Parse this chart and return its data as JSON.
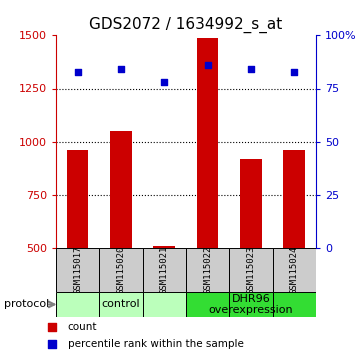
{
  "title": "GDS2072 / 1634992_s_at",
  "samples": [
    "GSM115017",
    "GSM115020",
    "GSM115021",
    "GSM115022",
    "GSM115023",
    "GSM115024"
  ],
  "counts": [
    960,
    1050,
    510,
    1490,
    920,
    960
  ],
  "percentile_ranks": [
    83,
    84,
    78,
    86,
    84,
    83
  ],
  "ylim_left": [
    500,
    1500
  ],
  "ylim_right": [
    0,
    100
  ],
  "yticks_left": [
    500,
    750,
    1000,
    1250,
    1500
  ],
  "yticks_right": [
    0,
    25,
    50,
    75,
    100
  ],
  "ytick_labels_right": [
    "0",
    "25",
    "50",
    "75",
    "100%"
  ],
  "bar_color": "#cc0000",
  "dot_color": "#0000cc",
  "bar_bottom": 500,
  "groups": [
    {
      "label": "control",
      "color": "#bbffbb"
    },
    {
      "label": "DHR96\noverexpression",
      "color": "#33dd33"
    }
  ],
  "protocol_label": "protocol",
  "legend_count_label": "count",
  "legend_percentile_label": "percentile rank within the sample",
  "title_fontsize": 11,
  "tick_fontsize": 8,
  "group_label_fontsize": 8,
  "sample_label_fontsize": 6.5,
  "background_color": "#ffffff",
  "sample_panel_color": "#cccccc",
  "gridline_ticks": [
    750,
    1000,
    1250
  ]
}
